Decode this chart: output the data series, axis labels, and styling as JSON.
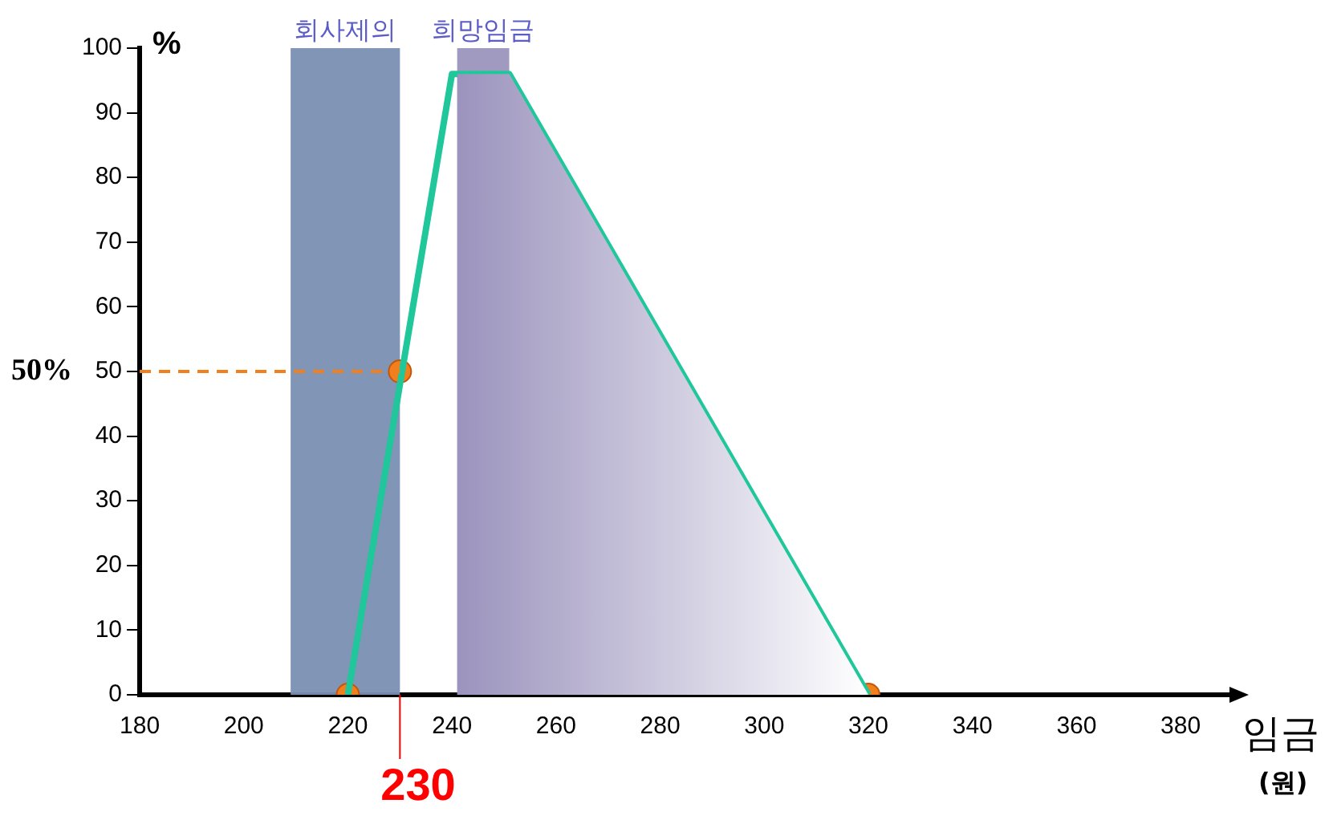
{
  "chart_data": {
    "type": "line",
    "xlabel": "임금",
    "ylabel": "%",
    "xlim": [
      180,
      390
    ],
    "xticks": [
      180,
      200,
      220,
      240,
      260,
      280,
      300,
      320,
      340,
      360,
      380
    ],
    "ylim": [
      0,
      100
    ],
    "yticks": [
      0,
      10,
      20,
      30,
      40,
      50,
      60,
      70,
      80,
      90,
      100
    ],
    "series": [
      {
        "type": "area",
        "color": "#9b93bd",
        "x": [
          241,
          251,
          320
        ],
        "values": [
          96,
          96,
          0
        ]
      },
      {
        "color": "#1fc79a",
        "x": [
          220,
          240,
          251,
          320
        ],
        "values": [
          0,
          96,
          96,
          0
        ]
      },
      {
        "type": "scatter",
        "color": "#f07f1e",
        "x": [
          220,
          230,
          320
        ],
        "values": [
          0,
          50,
          0
        ]
      }
    ],
    "bands": [
      {
        "axis": "x",
        "from": 209,
        "to": 230,
        "label": "회사제의",
        "color": "#7a8fb3"
      },
      {
        "axis": "x",
        "from": 241,
        "to": 251,
        "label": "희망임금",
        "color": "#9b93bd"
      }
    ],
    "ref_lines": [
      {
        "axis": "y",
        "value": 50,
        "label": "50%",
        "color": "#f07f1e",
        "line_style": "dashed"
      },
      {
        "axis": "x",
        "value": 230,
        "label": "230",
        "color": "#ff0000"
      }
    ],
    "annotations": [
      "(원)"
    ],
    "grid": false,
    "legend": false
  }
}
